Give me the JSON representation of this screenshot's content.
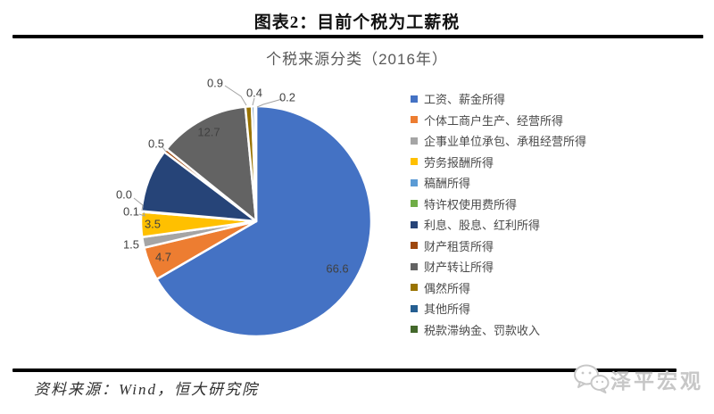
{
  "figure": {
    "title": "图表2：目前个税为工薪税",
    "source": "资料来源：Wind，恒大研究院",
    "watermark": "泽平宏观"
  },
  "chart_data": {
    "type": "pie",
    "title": "个税来源分类（2016年）",
    "values_unit": "percent",
    "total": 100.0,
    "start_angle": "12-oclock",
    "direction": "clockwise",
    "legend_position": "right",
    "series": [
      {
        "label": "工资、薪金所得",
        "value": 66.6,
        "color": "#4472C4",
        "data_label": "66.6",
        "label_pos": [
          258,
          221
        ]
      },
      {
        "label": "个体工商户生产、经营所得",
        "value": 4.7,
        "color": "#ED7D31",
        "data_label": "4.7",
        "label_pos": [
          63,
          208
        ]
      },
      {
        "label": "企事业单位承包、承租经营所得",
        "value": 1.5,
        "color": "#A5A5A5",
        "data_label": "1.5",
        "label_pos": [
          27,
          194
        ]
      },
      {
        "label": "劳务报酬所得",
        "value": 3.5,
        "color": "#FFC000",
        "data_label": "3.5",
        "label_pos": [
          51,
          171
        ]
      },
      {
        "label": "稿酬所得",
        "value": 0.1,
        "color": "#5B9BD5",
        "data_label": "0.1",
        "label_pos": [
          27,
          157
        ],
        "leader": [
          [
            36,
            160
          ],
          [
            42,
            162
          ],
          [
            41,
            158
          ]
        ]
      },
      {
        "label": "特许权使用费所得",
        "value": 0.0,
        "color": "#70AD47",
        "data_label": "0.0",
        "label_pos": [
          19,
          138
        ],
        "leader": [
          [
            30,
            142
          ],
          [
            40,
            150
          ],
          [
            39,
            156
          ]
        ]
      },
      {
        "label": "利息、股息、红利所得",
        "value": 8.9,
        "color": "#264478",
        "data_label": "",
        "label_pos": null
      },
      {
        "label": "财产租赁所得",
        "value": 0.5,
        "color": "#9E480E",
        "data_label": "0.5",
        "label_pos": [
          55,
          81
        ],
        "leader": [
          [
            62,
            85
          ],
          [
            66,
            90
          ]
        ]
      },
      {
        "label": "财产转让所得",
        "value": 12.7,
        "color": "#636363",
        "data_label": "12.7",
        "label_pos": [
          114,
          68
        ]
      },
      {
        "label": "偶然所得",
        "value": 0.9,
        "color": "#997300",
        "data_label": "0.9",
        "label_pos": [
          121,
          13
        ],
        "leader": [
          [
            132,
            16
          ],
          [
            150,
            28
          ],
          [
            156,
            38
          ]
        ]
      },
      {
        "label": "其他所得",
        "value": 0.4,
        "color": "#255E91",
        "data_label": "0.4",
        "label_pos": [
          165,
          24
        ],
        "leader": [
          [
            165,
            30
          ],
          [
            163,
            38
          ]
        ]
      },
      {
        "label": "税款滞纳金、罚款收入",
        "value": 0.2,
        "color": "#43682B",
        "data_label": "0.2",
        "label_pos": [
          202,
          29
        ],
        "leader": [
          [
            196,
            31
          ],
          [
            175,
            37
          ],
          [
            168,
            40
          ]
        ]
      }
    ],
    "geometry": {
      "center": [
        167,
        168
      ],
      "radius": 129,
      "slice_border_color": "#ffffff"
    }
  }
}
